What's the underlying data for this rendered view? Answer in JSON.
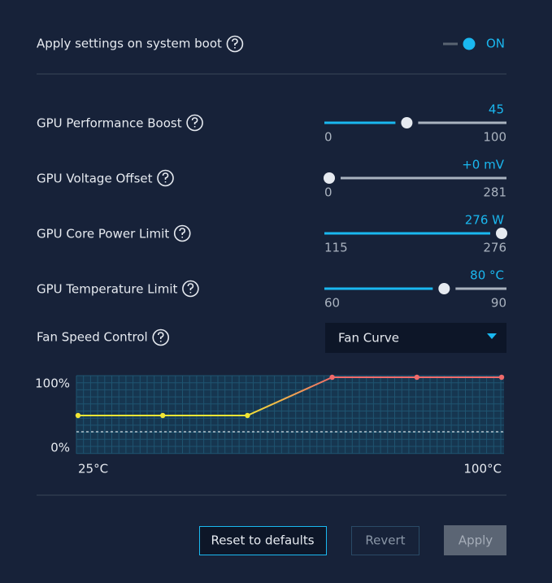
{
  "boot": {
    "label": "Apply settings on system boot",
    "state": "ON"
  },
  "sliders": [
    {
      "label": "GPU Performance Boost",
      "value": 45,
      "value_label": "45",
      "min": 0,
      "max": 100
    },
    {
      "label": "GPU Voltage Offset",
      "value": 0,
      "value_label": "+0 mV",
      "min": 0,
      "max": 281
    },
    {
      "label": "GPU Core Power Limit",
      "value": 276,
      "value_label": "276 W",
      "min": 115,
      "max": 276
    },
    {
      "label": "GPU Temperature Limit",
      "value": 80,
      "value_label": "80 °C",
      "min": 60,
      "max": 90
    }
  ],
  "fan": {
    "label": "Fan Speed Control",
    "mode": "Fan Curve"
  },
  "fan_curve": {
    "type": "line",
    "x": [
      25,
      40,
      55,
      70,
      85,
      100
    ],
    "values": [
      50,
      50,
      50,
      100,
      100,
      100
    ],
    "xlim": [
      25,
      100
    ],
    "ylim": [
      0,
      100
    ],
    "xticks": [
      {
        "value": 25,
        "label": "25°C"
      },
      {
        "value": 100,
        "label": "100°C"
      }
    ],
    "yticks": [
      {
        "value": 0,
        "label": "0%"
      },
      {
        "value": 100,
        "label": "100%"
      }
    ],
    "low_color": "#f2e634",
    "high_color": "#f06a6a"
  },
  "buttons": {
    "reset": "Reset to defaults",
    "revert": "Revert",
    "apply": "Apply"
  }
}
